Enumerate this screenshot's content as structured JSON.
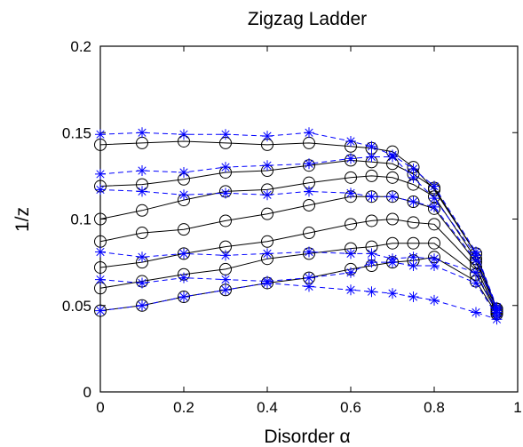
{
  "chart_data": {
    "type": "line",
    "title": "Zigzag Ladder",
    "xlabel": "Disorder α",
    "ylabel": "1/z",
    "xlim": [
      0,
      1
    ],
    "ylim": [
      0,
      0.2
    ],
    "xticks": [
      0,
      0.2,
      0.4,
      0.6,
      0.8,
      1
    ],
    "yticks": [
      0,
      0.05,
      0.1,
      0.15,
      0.2
    ],
    "xtick_labels": [
      "0",
      "0.2",
      "0.4",
      "0.6",
      "0.8",
      "1"
    ],
    "ytick_labels": [
      "0",
      "0.05",
      "0.1",
      "0.15",
      "0.2"
    ],
    "grid": false,
    "legend": "none",
    "colors": {
      "circle_series": "#000000",
      "star_series": "#0000ff"
    },
    "series": [
      {
        "marker": "circle",
        "style": "solid",
        "x": [
          0,
          0.1,
          0.2,
          0.3,
          0.4,
          0.5,
          0.6,
          0.65,
          0.7,
          0.75,
          0.8,
          0.9,
          0.95
        ],
        "y": [
          0.143,
          0.144,
          0.145,
          0.144,
          0.143,
          0.144,
          0.142,
          0.141,
          0.139,
          0.13,
          0.117,
          0.08,
          0.048
        ]
      },
      {
        "marker": "circle",
        "style": "solid",
        "x": [
          0,
          0.1,
          0.2,
          0.3,
          0.4,
          0.5,
          0.6,
          0.65,
          0.7,
          0.75,
          0.8,
          0.9,
          0.95
        ],
        "y": [
          0.119,
          0.12,
          0.123,
          0.127,
          0.128,
          0.131,
          0.134,
          0.133,
          0.132,
          0.126,
          0.118,
          0.08,
          0.048
        ]
      },
      {
        "marker": "circle",
        "style": "solid",
        "x": [
          0,
          0.1,
          0.2,
          0.3,
          0.4,
          0.5,
          0.6,
          0.65,
          0.7,
          0.75,
          0.8,
          0.9,
          0.95
        ],
        "y": [
          0.1,
          0.105,
          0.111,
          0.116,
          0.117,
          0.121,
          0.124,
          0.125,
          0.124,
          0.12,
          0.113,
          0.077,
          0.048
        ]
      },
      {
        "marker": "circle",
        "style": "solid",
        "x": [
          0,
          0.1,
          0.2,
          0.3,
          0.4,
          0.5,
          0.6,
          0.65,
          0.7,
          0.75,
          0.8,
          0.9,
          0.95
        ],
        "y": [
          0.087,
          0.092,
          0.094,
          0.099,
          0.103,
          0.108,
          0.113,
          0.113,
          0.113,
          0.11,
          0.106,
          0.075,
          0.047
        ]
      },
      {
        "marker": "circle",
        "style": "solid",
        "x": [
          0,
          0.1,
          0.2,
          0.3,
          0.4,
          0.5,
          0.6,
          0.65,
          0.7,
          0.75,
          0.8,
          0.9,
          0.95
        ],
        "y": [
          0.072,
          0.075,
          0.08,
          0.084,
          0.087,
          0.092,
          0.097,
          0.099,
          0.1,
          0.098,
          0.097,
          0.072,
          0.046
        ]
      },
      {
        "marker": "circle",
        "style": "solid",
        "x": [
          0,
          0.1,
          0.2,
          0.3,
          0.4,
          0.5,
          0.6,
          0.65,
          0.7,
          0.75,
          0.8,
          0.9,
          0.95
        ],
        "y": [
          0.06,
          0.064,
          0.068,
          0.071,
          0.077,
          0.08,
          0.083,
          0.084,
          0.086,
          0.086,
          0.086,
          0.068,
          0.046
        ]
      },
      {
        "marker": "circle",
        "style": "solid",
        "x": [
          0,
          0.1,
          0.2,
          0.3,
          0.4,
          0.5,
          0.6,
          0.65,
          0.7,
          0.75,
          0.8,
          0.9,
          0.95
        ],
        "y": [
          0.047,
          0.05,
          0.055,
          0.059,
          0.063,
          0.066,
          0.071,
          0.073,
          0.075,
          0.076,
          0.078,
          0.064,
          0.045
        ]
      },
      {
        "marker": "star",
        "style": "dashed",
        "x": [
          0,
          0.1,
          0.2,
          0.3,
          0.4,
          0.5,
          0.6,
          0.65,
          0.7,
          0.75,
          0.8,
          0.9,
          0.95
        ],
        "y": [
          0.149,
          0.15,
          0.149,
          0.149,
          0.148,
          0.15,
          0.145,
          0.142,
          0.137,
          0.129,
          0.119,
          0.081,
          0.049
        ]
      },
      {
        "marker": "star",
        "style": "dashed",
        "x": [
          0,
          0.1,
          0.2,
          0.3,
          0.4,
          0.5,
          0.6,
          0.65,
          0.7,
          0.75,
          0.8,
          0.9,
          0.95
        ],
        "y": [
          0.126,
          0.128,
          0.127,
          0.13,
          0.131,
          0.132,
          0.135,
          0.136,
          0.136,
          0.124,
          0.112,
          0.079,
          0.048
        ]
      },
      {
        "marker": "star",
        "style": "dashed",
        "x": [
          0,
          0.1,
          0.2,
          0.3,
          0.4,
          0.5,
          0.6,
          0.65,
          0.7,
          0.75,
          0.8,
          0.9,
          0.95
        ],
        "y": [
          0.117,
          0.116,
          0.114,
          0.115,
          0.114,
          0.116,
          0.115,
          0.113,
          0.113,
          0.11,
          0.107,
          0.076,
          0.047
        ]
      },
      {
        "marker": "star",
        "style": "dashed",
        "x": [
          0,
          0.1,
          0.2,
          0.3,
          0.4,
          0.5,
          0.6,
          0.65,
          0.7,
          0.75,
          0.8,
          0.9,
          0.95
        ],
        "y": [
          0.081,
          0.078,
          0.08,
          0.079,
          0.08,
          0.081,
          0.08,
          0.08,
          0.077,
          0.078,
          0.077,
          0.069,
          0.046
        ]
      },
      {
        "marker": "star",
        "style": "dashed",
        "x": [
          0,
          0.1,
          0.2,
          0.3,
          0.4,
          0.5,
          0.6,
          0.65,
          0.7,
          0.75,
          0.8,
          0.9,
          0.95
        ],
        "y": [
          0.065,
          0.063,
          0.066,
          0.065,
          0.064,
          0.066,
          0.069,
          0.075,
          0.075,
          0.073,
          0.073,
          0.063,
          0.044
        ]
      },
      {
        "marker": "star",
        "style": "dashed",
        "x": [
          0,
          0.1,
          0.2,
          0.3,
          0.4,
          0.5,
          0.6,
          0.65,
          0.7,
          0.75,
          0.8,
          0.9,
          0.95
        ],
        "y": [
          0.047,
          0.05,
          0.055,
          0.059,
          0.063,
          0.061,
          0.059,
          0.058,
          0.057,
          0.055,
          0.053,
          0.046,
          0.042
        ]
      }
    ]
  }
}
